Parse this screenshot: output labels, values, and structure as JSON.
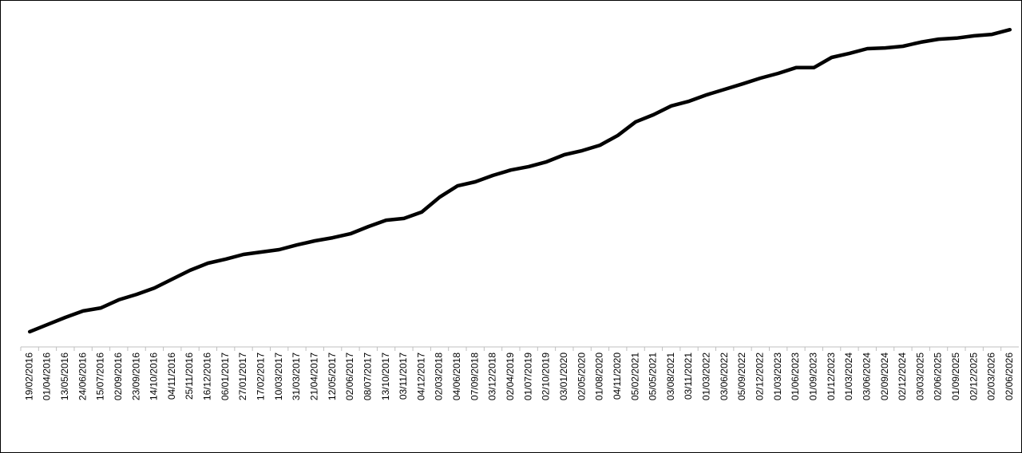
{
  "chart_data": {
    "type": "line",
    "categories": [
      "19/02/2016",
      "01/04/2016",
      "13/05/2016",
      "24/06/2016",
      "15/07/2016",
      "02/09/2016",
      "23/09/2016",
      "14/10/2016",
      "04/11/2016",
      "25/11/2016",
      "16/12/2016",
      "06/01/2017",
      "27/01/2017",
      "17/02/2017",
      "10/03/2017",
      "31/03/2017",
      "21/04/2017",
      "12/05/2017",
      "02/06/2017",
      "08/07/2017",
      "13/10/2017",
      "03/11/2017",
      "04/12/2017",
      "02/03/2018",
      "04/06/2018",
      "07/09/2018",
      "03/12/2018",
      "02/04/2019",
      "01/07/2019",
      "02/10/2019",
      "03/01/2020",
      "02/05/2020",
      "01/08/2020",
      "04/11/2020",
      "05/02/2021",
      "05/05/2021",
      "03/08/2021",
      "03/11/2021",
      "01/03/2022",
      "03/06/2022",
      "05/09/2022",
      "02/12/2022",
      "01/03/2023",
      "01/06/2023",
      "01/09/2023",
      "01/12/2023",
      "01/03/2024",
      "03/06/2024",
      "02/09/2024",
      "02/12/2024",
      "03/03/2025",
      "02/06/2025",
      "01/09/2025",
      "02/12/2025",
      "02/03/2026",
      "02/06/2026"
    ],
    "values": [
      4.5,
      6.6,
      8.7,
      10.6,
      11.5,
      13.9,
      15.5,
      17.4,
      20.0,
      22.6,
      24.7,
      25.9,
      27.3,
      28.0,
      28.7,
      30.1,
      31.3,
      32.2,
      33.4,
      35.5,
      37.4,
      37.9,
      39.8,
      44.2,
      47.5,
      48.7,
      50.6,
      52.2,
      53.2,
      54.6,
      56.7,
      57.9,
      59.5,
      62.4,
      66.4,
      68.5,
      71.1,
      72.5,
      74.4,
      76.0,
      77.6,
      79.3,
      80.7,
      82.4,
      82.4,
      85.4,
      86.6,
      88.0,
      88.2,
      88.7,
      89.9,
      90.8,
      91.1,
      91.8,
      92.2,
      93.6
    ],
    "color": "#000000",
    "ylim": [
      0,
      100
    ]
  }
}
